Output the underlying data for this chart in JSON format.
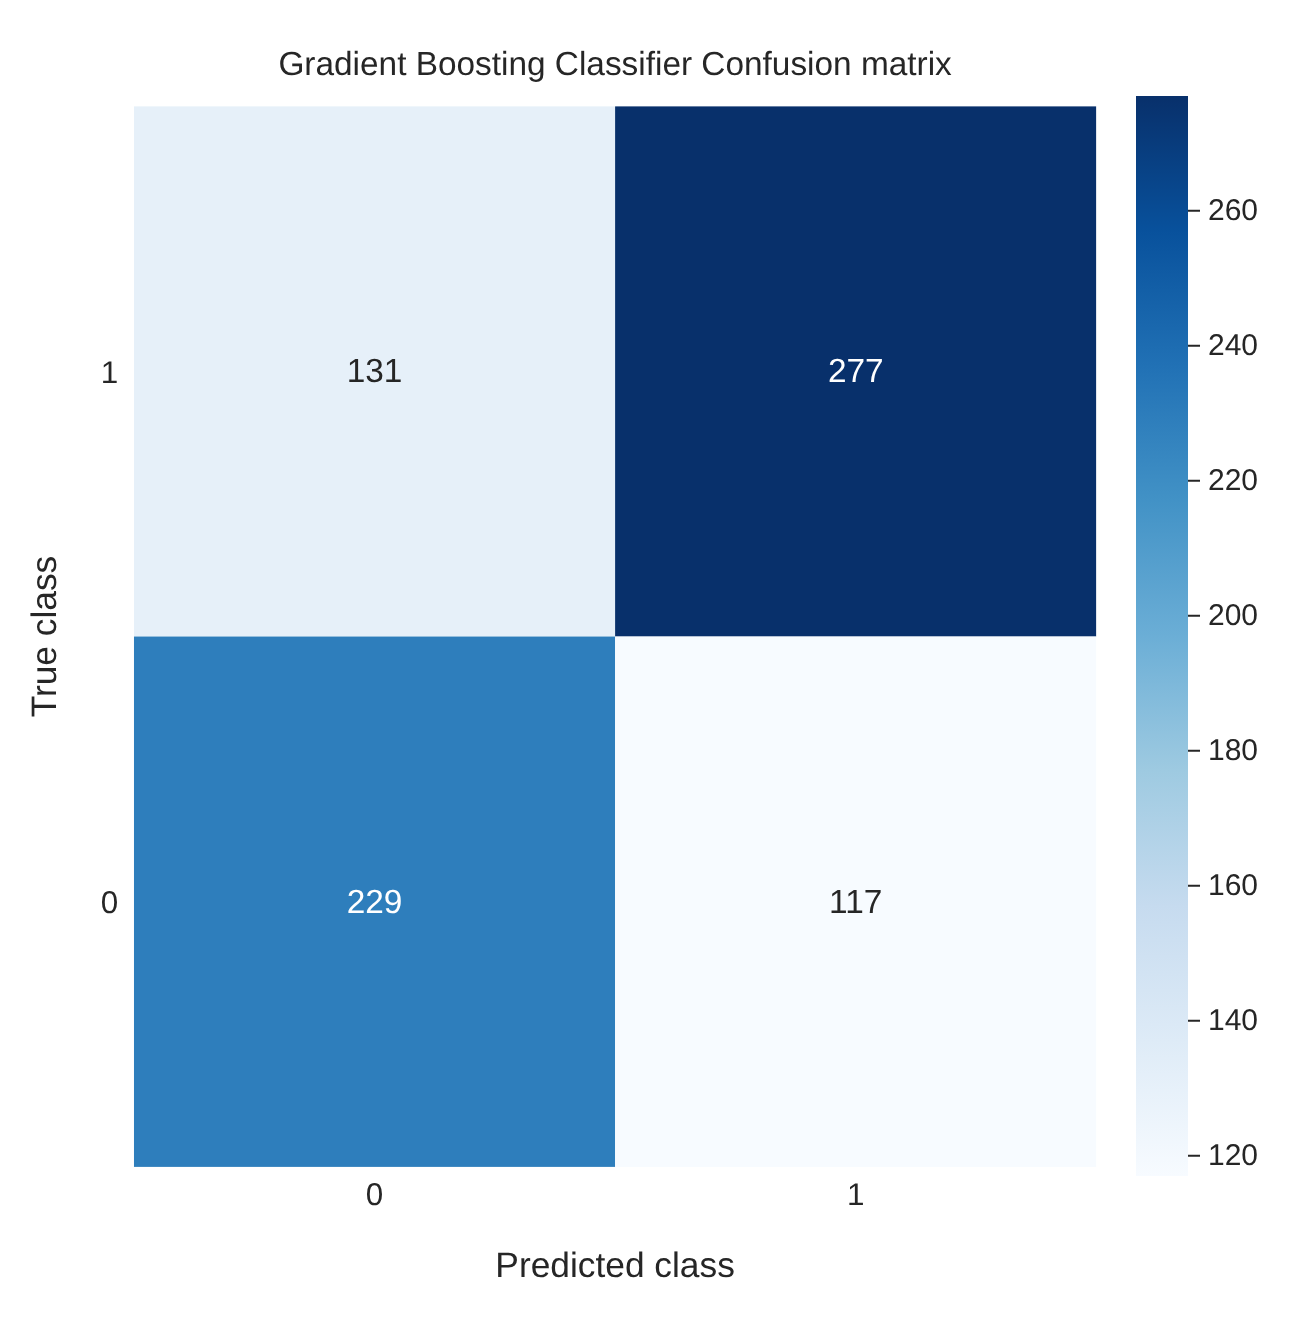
{
  "chart_data": {
    "type": "heatmap",
    "title": "Gradient Boosting Classifier Confusion matrix",
    "xlabel": "Predicted class",
    "ylabel": "True class",
    "categories": [
      "0",
      "1"
    ],
    "y_categories": [
      "1",
      "0"
    ],
    "cells": [
      [
        131,
        277
      ],
      [
        229,
        117
      ]
    ],
    "data_labels": true,
    "clim": [
      117,
      277
    ],
    "cticks": [
      120,
      140,
      160,
      180,
      200,
      220,
      240,
      260
    ]
  }
}
